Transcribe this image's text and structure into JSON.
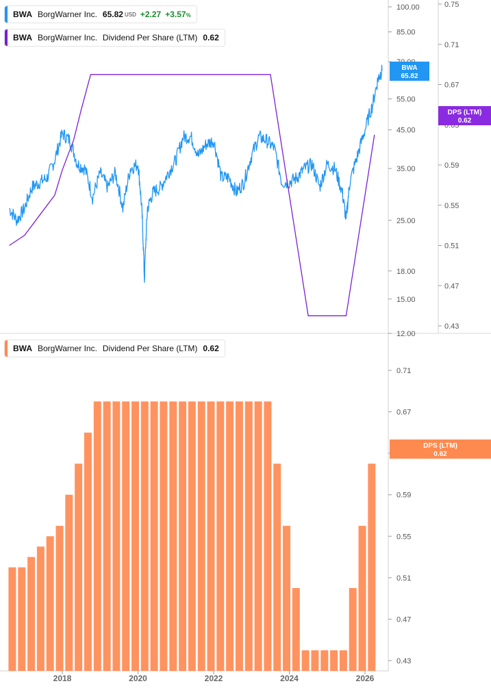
{
  "legends": {
    "price": {
      "ticker": "BWA",
      "name": "BorgWarner Inc.",
      "value": "65.82",
      "unit": "USD",
      "change": "+2.27",
      "change_pct": "+3.57",
      "pct_sign": "%"
    },
    "dps_top": {
      "ticker": "BWA",
      "name": "BorgWarner Inc.",
      "metric": "Dividend Per Share (LTM)",
      "value": "0.62"
    },
    "dps_bottom": {
      "ticker": "BWA",
      "name": "BorgWarner Inc.",
      "metric": "Dividend Per Share (LTM)",
      "value": "0.62"
    }
  },
  "colors": {
    "price": "#2196f3",
    "dps_line": "#7b1fd1",
    "bar": "#ff9360",
    "price_tag": "#2196f3",
    "dps_tag_top": "#8a2be2",
    "dps_tag_bottom": "#ff8a50",
    "axis_text": "#555555"
  },
  "tags": {
    "price": {
      "line1": "BWA",
      "line2": "65.82"
    },
    "dps_top": {
      "line1": "DPS (LTM)",
      "line2": "0.62"
    },
    "dps_bottom": {
      "line1": "DPS (LTM)",
      "line2": "0.62"
    }
  },
  "chart_data": [
    {
      "type": "line",
      "scale": "log",
      "series": [
        {
          "name": "BWA BorgWarner Inc.",
          "axis": "price",
          "x": [
            2016.6,
            2016.8,
            2017.0,
            2017.2,
            2017.4,
            2017.6,
            2017.8,
            2018.0,
            2018.2,
            2018.4,
            2018.6,
            2018.8,
            2019.0,
            2019.2,
            2019.4,
            2019.6,
            2019.8,
            2020.0,
            2020.1,
            2020.17,
            2020.25,
            2020.4,
            2020.6,
            2020.8,
            2021.0,
            2021.2,
            2021.4,
            2021.6,
            2021.8,
            2022.0,
            2022.2,
            2022.4,
            2022.6,
            2022.8,
            2023.0,
            2023.2,
            2023.4,
            2023.6,
            2023.8,
            2024.0,
            2024.2,
            2024.4,
            2024.6,
            2024.8,
            2025.0,
            2025.2,
            2025.4,
            2025.5,
            2025.6,
            2025.8,
            2026.0,
            2026.2,
            2026.35,
            2026.45
          ],
          "values": [
            27,
            25,
            27,
            31,
            32,
            33,
            37,
            44,
            42,
            36,
            35,
            29,
            34,
            31,
            34,
            27,
            35,
            36,
            27,
            17,
            27,
            30,
            31,
            34,
            37,
            43,
            43,
            38,
            41,
            42,
            33,
            33,
            30,
            32,
            38,
            43,
            42,
            40,
            32,
            32,
            33,
            35,
            36,
            31,
            36,
            35,
            30,
            25,
            32,
            38,
            45,
            53,
            63,
            66
          ]
        },
        {
          "name": "DPS (LTM)",
          "axis": "dps",
          "x": [
            2016.6,
            2017.0,
            2017.3,
            2017.6,
            2017.8,
            2018.0,
            2018.3,
            2018.5,
            2018.75,
            2019.0,
            2019.5,
            2020.0,
            2020.5,
            2021.0,
            2021.5,
            2022.0,
            2022.5,
            2023.0,
            2023.5,
            2023.75,
            2024.0,
            2024.25,
            2024.5,
            2025.0,
            2025.5,
            2025.75,
            2026.0,
            2026.25
          ],
          "values": [
            0.51,
            0.52,
            0.535,
            0.55,
            0.56,
            0.585,
            0.615,
            0.645,
            0.68,
            0.68,
            0.68,
            0.68,
            0.68,
            0.68,
            0.68,
            0.68,
            0.68,
            0.68,
            0.68,
            0.62,
            0.56,
            0.5,
            0.44,
            0.44,
            0.44,
            0.5,
            0.56,
            0.62
          ]
        }
      ],
      "price_axis": {
        "ticks": [
          "100.00",
          "85.00",
          "70.00",
          "55.00",
          "45.00",
          "35.00",
          "25.00",
          "18.00",
          "15.00",
          "12.00"
        ],
        "range": [
          12,
          100
        ]
      },
      "dps_axis": {
        "ticks": [
          "0.75",
          "0.71",
          "0.67",
          "0.63",
          "0.59",
          "0.55",
          "0.51",
          "0.47",
          "0.43"
        ],
        "range": [
          0.43,
          0.75
        ]
      }
    },
    {
      "type": "bar",
      "series": [
        {
          "name": "DPS (LTM)",
          "x": [
            2016.75,
            2017.0,
            2017.25,
            2017.5,
            2017.75,
            2018.0,
            2018.25,
            2018.5,
            2018.75,
            2019.0,
            2019.25,
            2019.5,
            2019.75,
            2020.0,
            2020.25,
            2020.5,
            2020.75,
            2021.0,
            2021.25,
            2021.5,
            2021.75,
            2022.0,
            2022.25,
            2022.5,
            2022.75,
            2023.0,
            2023.25,
            2023.5,
            2023.75,
            2024.0,
            2024.25,
            2024.5,
            2024.75,
            2025.0,
            2025.25,
            2025.5,
            2025.75,
            2026.0,
            2026.25
          ],
          "values": [
            0.52,
            0.52,
            0.53,
            0.54,
            0.55,
            0.56,
            0.59,
            0.62,
            0.65,
            0.68,
            0.68,
            0.68,
            0.68,
            0.68,
            0.68,
            0.68,
            0.68,
            0.68,
            0.68,
            0.68,
            0.68,
            0.68,
            0.68,
            0.68,
            0.68,
            0.68,
            0.68,
            0.68,
            0.62,
            0.56,
            0.5,
            0.44,
            0.44,
            0.44,
            0.44,
            0.44,
            0.5,
            0.56,
            0.62
          ]
        }
      ],
      "y_axis": {
        "ticks": [
          "0.71",
          "0.67",
          "0.63",
          "0.59",
          "0.55",
          "0.51",
          "0.47",
          "0.43"
        ],
        "range": [
          0.43,
          0.71
        ]
      },
      "x_ticks": [
        "2018",
        "2020",
        "2022",
        "2024",
        "2026"
      ]
    }
  ]
}
